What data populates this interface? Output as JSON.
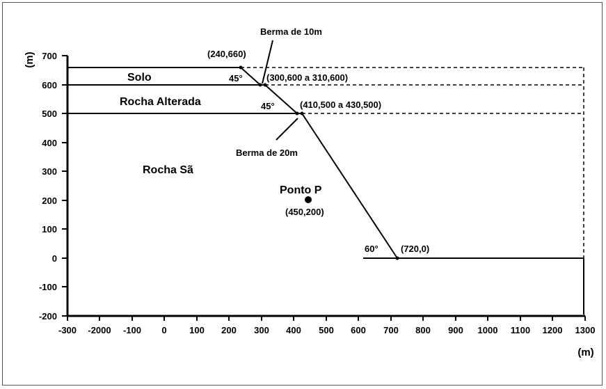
{
  "figure": {
    "x_axis": {
      "label": "(m)",
      "tick_labels": [
        "-300",
        "-2000",
        "-100",
        "0",
        "100",
        "200",
        "300",
        "400",
        "500",
        "600",
        "700",
        "800",
        "900",
        "1000",
        "1100",
        "1200",
        "1300"
      ]
    },
    "y_axis": {
      "label": "(m)",
      "tick_labels": [
        "700",
        "600",
        "500",
        "400",
        "300",
        "200",
        "100",
        "0",
        "-100",
        "-200"
      ]
    },
    "regions": {
      "solo": "Solo",
      "rocha_alterada": "Rocha Alterada",
      "rocha_sa": "Rocha Sã"
    },
    "annotations": {
      "berma_10": "Berma de 10m",
      "berma_20": "Berma de 20m",
      "pt_top": "(240,660)",
      "pt_berma1": "(300,600 a 310,600)",
      "pt_berma2": "(410,500 a 430,500)",
      "pt_toe": "(720,0)",
      "angle_1": "45°",
      "angle_2": "45°",
      "angle_toe": "60°",
      "ponto_p": "Ponto P",
      "ponto_p_coords": "(450,200)"
    },
    "points": {
      "crest": [
        240,
        660
      ],
      "berma1_start": [
        300,
        600
      ],
      "berma1_end": [
        310,
        600
      ],
      "berma2_start": [
        410,
        500
      ],
      "berma2_end": [
        430,
        500
      ],
      "toe": [
        720,
        0
      ],
      "ponto_p": [
        450,
        200
      ]
    }
  }
}
